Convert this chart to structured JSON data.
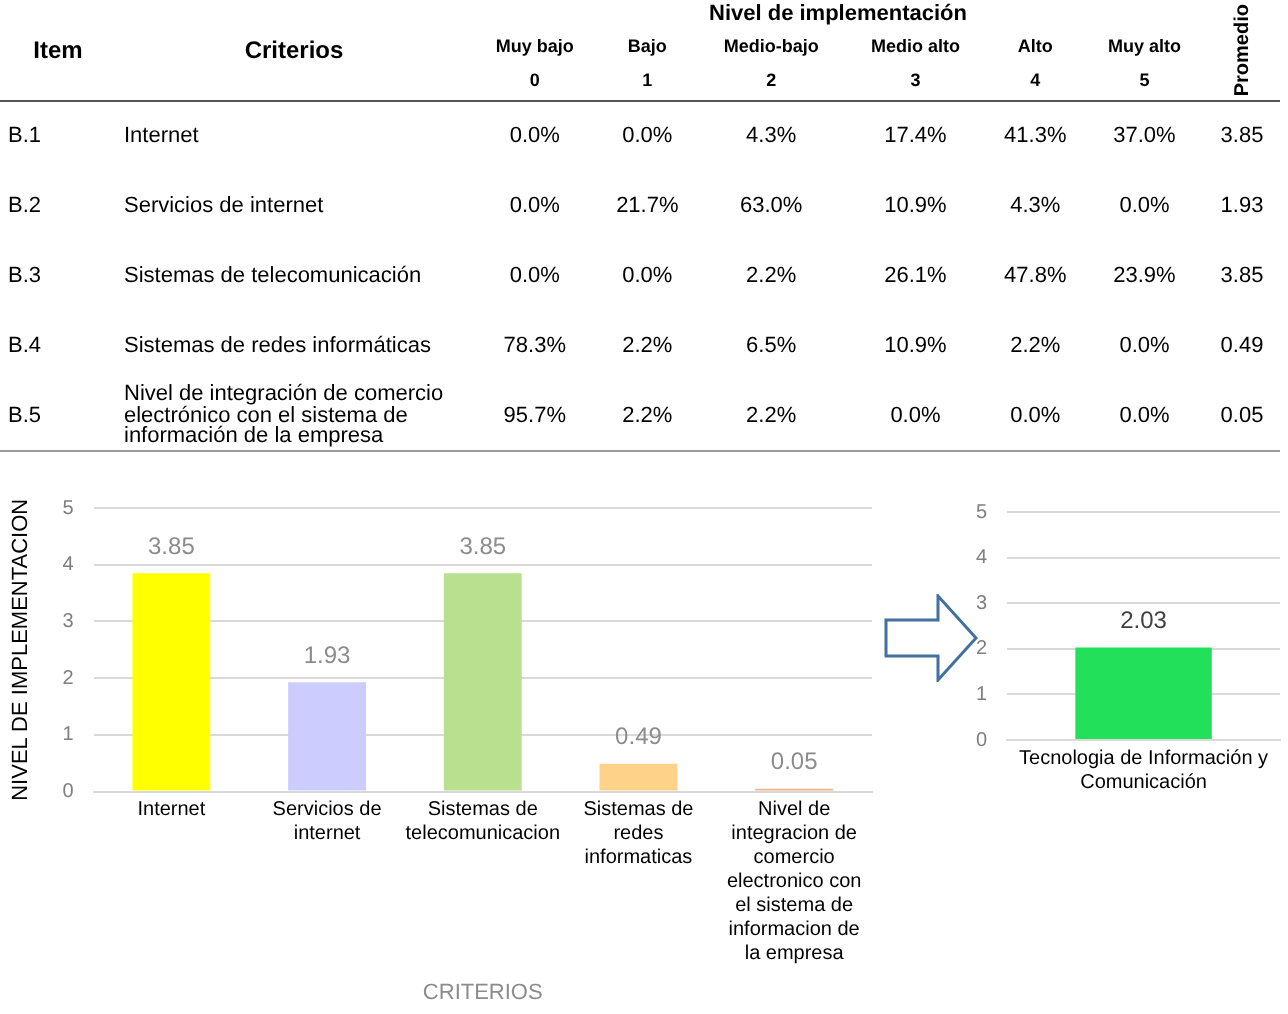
{
  "chart_data": [
    {
      "type": "heatmap",
      "xlabel": "Nivel de implementación",
      "annotations": [
        "Item",
        "Criterios"
      ],
      "categories": [
        "Muy bajo\n0",
        "Bajo\n1",
        "Medio-bajo\n2",
        "Medio alto\n3",
        "Alto\n4",
        "Muy alto\n5",
        "Promedio"
      ],
      "y2_categories": [
        "B.1",
        "B.2",
        "B.3",
        "B.4",
        "B.5"
      ],
      "y_categories": [
        "Internet",
        "Servicios de internet",
        "Sistemas de telecomunicación",
        "Sistemas de redes informáticas",
        "Nivel de integración de comercio electrónico con el sistema de información de la empresa"
      ],
      "cells": [
        [
          0.0,
          0.0,
          4.3,
          17.4,
          41.3,
          37.0,
          3.85
        ],
        [
          0.0,
          21.7,
          63.0,
          10.9,
          4.3,
          0.0,
          1.93
        ],
        [
          0.0,
          0.0,
          2.2,
          26.1,
          47.8,
          23.9,
          3.85
        ],
        [
          78.3,
          2.2,
          6.5,
          10.9,
          2.2,
          0.0,
          0.49
        ],
        [
          95.7,
          2.2,
          2.2,
          0.0,
          0.0,
          0.0,
          0.05
        ]
      ],
      "cell_labels": [
        [
          "0.0%",
          "0.0%",
          "4.3%",
          "17.4%",
          "41.3%",
          "37.0%",
          "3.85"
        ],
        [
          "0.0%",
          "21.7%",
          "63.0%",
          "10.9%",
          "4.3%",
          "0.0%",
          "1.93"
        ],
        [
          "0.0%",
          "0.0%",
          "2.2%",
          "26.1%",
          "47.8%",
          "23.9%",
          "3.85"
        ],
        [
          "78.3%",
          "2.2%",
          "6.5%",
          "10.9%",
          "2.2%",
          "0.0%",
          "0.49"
        ],
        [
          "95.7%",
          "2.2%",
          "2.2%",
          "0.0%",
          "0.0%",
          "0.0%",
          "0.05"
        ]
      ]
    },
    {
      "type": "bar",
      "xlabel": "CRITERIOS",
      "ylabel": "NIVEL DE IMPLEMENTACION",
      "categories": [
        "Internet",
        "Servicios de internet",
        "Sistemas de telecomunicacion",
        "Sistemas de redes informaticas",
        "Nivel de integracion de comercio electronico con el sistema de informacion de la empresa"
      ],
      "values": [
        3.85,
        1.93,
        3.85,
        0.49,
        0.05
      ],
      "colors": [
        "#ffff00",
        "#ccccff",
        "#b8e08f",
        "#ffd28a",
        "#f4b183"
      ],
      "ylim": [
        0,
        5
      ],
      "yticks": [
        0,
        1,
        2,
        3,
        4,
        5
      ],
      "grid": "y",
      "legend": false,
      "data_labels": true
    },
    {
      "type": "bar",
      "categories": [
        "Tecnologia de Información y Comunicación"
      ],
      "values": [
        2.03
      ],
      "colors": [
        "#22e05a"
      ],
      "ylim": [
        0,
        5
      ],
      "yticks": [
        0,
        1,
        2,
        3,
        4,
        5
      ],
      "grid": "y",
      "legend": false,
      "data_labels": true
    }
  ]
}
